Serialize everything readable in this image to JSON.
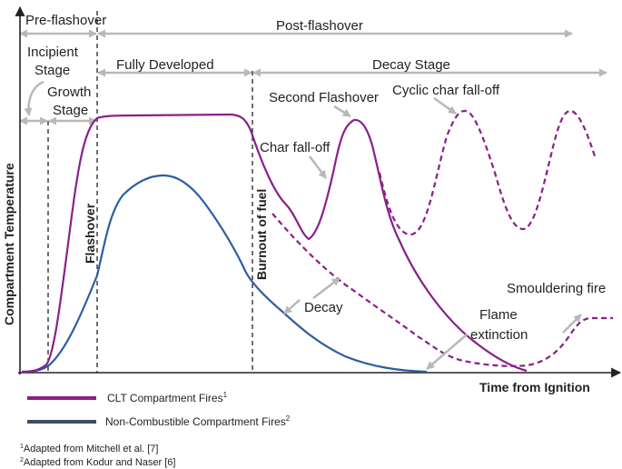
{
  "colors": {
    "clt": "#8a1f8a",
    "noncomb": "#2d5ea3",
    "arrow": "#b8b8b8",
    "text": "#222222"
  },
  "stages": {
    "pre_flashover": "Pre-flashover",
    "post_flashover": "Post-flashover",
    "incipient_line1": "Incipient",
    "incipient_line2": "Stage",
    "growth_line1": "Growth",
    "growth_line2": "Stage",
    "fully_developed": "Fully Developed",
    "decay_stage": "Decay Stage"
  },
  "markers": {
    "flashover": "Flashover",
    "burnout": "Burnout of fuel"
  },
  "annotations": {
    "second_flashover": "Second Flashover",
    "cyclic_char": "Cyclic char fall-off",
    "char_falloff": "Char fall-off",
    "decay": "Decay",
    "flame_extinction_line1": "Flame",
    "flame_extinction_line2": "extinction",
    "smouldering": "Smouldering fire"
  },
  "axes": {
    "ylabel": "Compartment Temperature",
    "xlabel": "Time from Ignition"
  },
  "legend": {
    "clt_label": "CLT Compartment Fires",
    "clt_sup": "1",
    "noncomb_label": "Non-Combustible Compartment Fires",
    "noncomb_sup": "2"
  },
  "footnotes": {
    "note1_sup": "1",
    "note1": "Adapted from Mitchell et al. [7]",
    "note2_sup": "2",
    "note2": "Adapted from Kodur and Naser [6]"
  }
}
